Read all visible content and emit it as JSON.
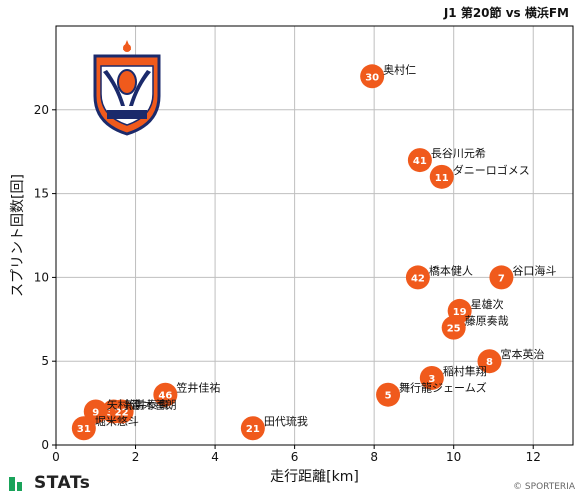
{
  "header": {
    "title": "J1 第20節 vs 横浜FM"
  },
  "footer": {
    "brand": "STATs",
    "copyright": "© SPORTERIA"
  },
  "colors": {
    "point": "#f05a1c",
    "grid": "#bfbfbf",
    "axis": "#000000",
    "pointText": "#ffffff"
  },
  "chart_data": {
    "type": "scatter",
    "title": "J1 第20節 vs 横浜FM",
    "xlabel": "走行距離[km]",
    "ylabel": "スプリント回数[回]",
    "xlim": [
      0,
      13
    ],
    "ylim": [
      0,
      25
    ],
    "xticks": [
      0,
      2,
      4,
      6,
      8,
      10,
      12
    ],
    "yticks": [
      0,
      5,
      10,
      15,
      20
    ],
    "grid": true,
    "points": [
      {
        "number": "30",
        "name": "奥村仁",
        "x": 7.95,
        "y": 22
      },
      {
        "number": "41",
        "name": "長谷川元希",
        "x": 9.15,
        "y": 17
      },
      {
        "number": "11",
        "name": "ダニーロゴメス",
        "x": 9.7,
        "y": 16
      },
      {
        "number": "42",
        "name": "橋本健人",
        "x": 9.1,
        "y": 10
      },
      {
        "number": "7",
        "name": "谷口海斗",
        "x": 11.2,
        "y": 10
      },
      {
        "number": "19",
        "name": "星雄次",
        "x": 10.15,
        "y": 8
      },
      {
        "number": "25",
        "name": "藤原奏哉",
        "x": 10.0,
        "y": 7
      },
      {
        "number": "8",
        "name": "宮本英治",
        "x": 10.9,
        "y": 5
      },
      {
        "number": "3",
        "name": "稲村隼翔",
        "x": 9.45,
        "y": 4
      },
      {
        "number": "5",
        "name": "舞行龍ジェームズ",
        "x": 8.35,
        "y": 3
      },
      {
        "number": "46",
        "name": "笠井佳祐",
        "x": 2.75,
        "y": 3
      },
      {
        "number": "9",
        "name": "矢村健",
        "x": 1.0,
        "y": 2
      },
      {
        "number": "33",
        "name": "新井泰貴",
        "x": 1.45,
        "y": 2
      },
      {
        "number": "22",
        "name": "高木善朗",
        "x": 1.65,
        "y": 2
      },
      {
        "number": "21",
        "name": "田代琉我",
        "x": 4.95,
        "y": 1
      },
      {
        "number": "31",
        "name": "堀米悠斗",
        "x": 0.7,
        "y": 1
      }
    ]
  }
}
